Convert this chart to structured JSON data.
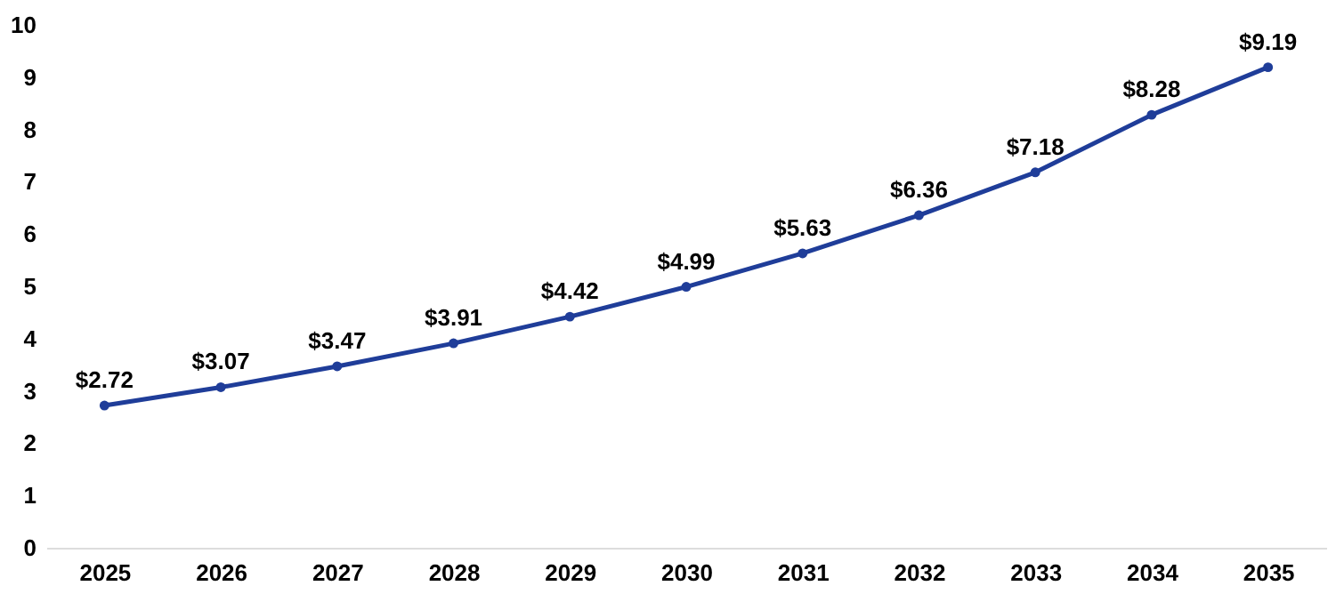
{
  "chart_data": {
    "type": "line",
    "categories": [
      "2025",
      "2026",
      "2027",
      "2028",
      "2029",
      "2030",
      "2031",
      "2032",
      "2033",
      "2034",
      "2035"
    ],
    "series": [
      {
        "color": "#1f3d99",
        "values": [
          2.72,
          3.07,
          3.47,
          3.91,
          4.42,
          4.99,
          5.63,
          6.36,
          7.18,
          8.28,
          9.19
        ],
        "value_labels": [
          "$2.72",
          "$3.07",
          "$3.47",
          "$3.91",
          "$4.42",
          "$4.99",
          "$5.63",
          "$6.36",
          "$7.18",
          "$8.28",
          "$9.19"
        ]
      }
    ],
    "ylim": [
      0,
      10
    ],
    "yticks": [
      0,
      1,
      2,
      3,
      4,
      5,
      6,
      7,
      8,
      9,
      10
    ],
    "grid": false,
    "marker": "circle",
    "line_style": "solid"
  }
}
